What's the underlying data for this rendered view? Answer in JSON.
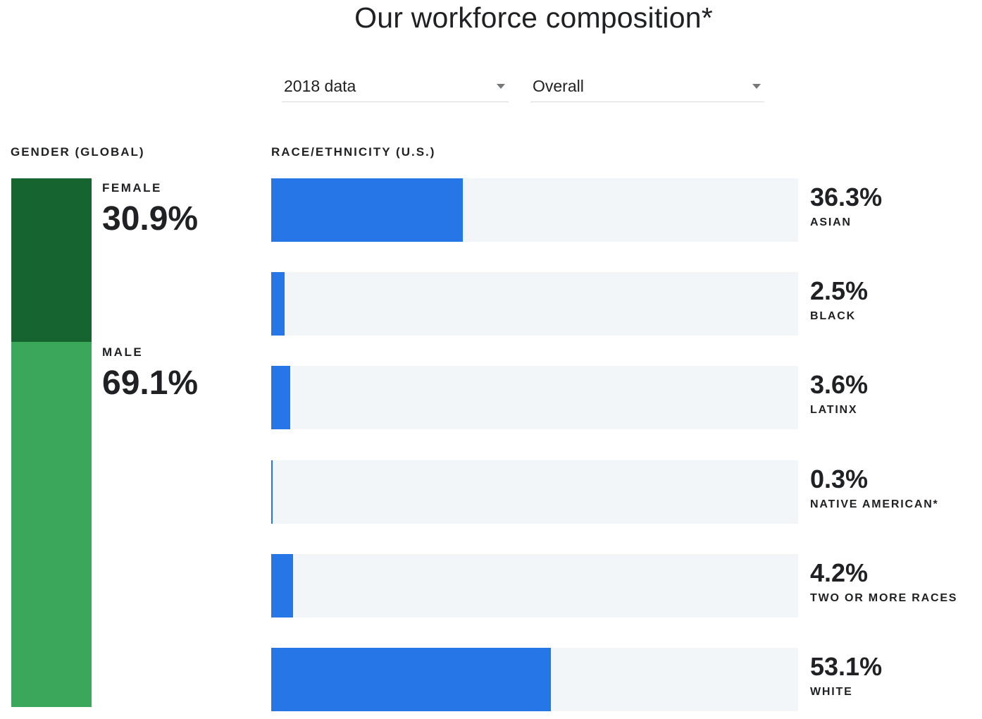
{
  "page": {
    "title": "Our workforce composition*"
  },
  "filters": {
    "year": {
      "value": "2018 data"
    },
    "category": {
      "value": "Overall"
    }
  },
  "colors": {
    "female_segment": "#166530",
    "male_segment": "#3ba75a",
    "race_bar_fill": "#2776e8",
    "race_bar_track": "#f3f6f8",
    "underline": "#d9dadc",
    "arrow": "#75787b",
    "text": "#202124"
  },
  "chart_data": [
    {
      "type": "bar",
      "title": "GENDER (GLOBAL)",
      "orientation": "vertical-stacked",
      "categories": [
        "FEMALE",
        "MALE"
      ],
      "values": [
        30.9,
        69.1
      ],
      "display_values": [
        "30.9%",
        "69.1%"
      ],
      "unit": "%",
      "ylim": [
        0,
        100
      ],
      "grid": false,
      "legend": "none"
    },
    {
      "type": "bar",
      "title": "RACE/ETHNICITY (U.S.)",
      "orientation": "horizontal",
      "categories": [
        "ASIAN",
        "BLACK",
        "LATINX",
        "NATIVE AMERICAN*",
        "TWO OR MORE RACES",
        "WHITE"
      ],
      "values": [
        36.3,
        2.5,
        3.6,
        0.3,
        4.2,
        53.1
      ],
      "display_values": [
        "36.3%",
        "2.5%",
        "3.6%",
        "0.3%",
        "4.2%",
        "53.1%"
      ],
      "unit": "%",
      "xlim": [
        0,
        100
      ],
      "grid": false,
      "legend": "none"
    }
  ]
}
